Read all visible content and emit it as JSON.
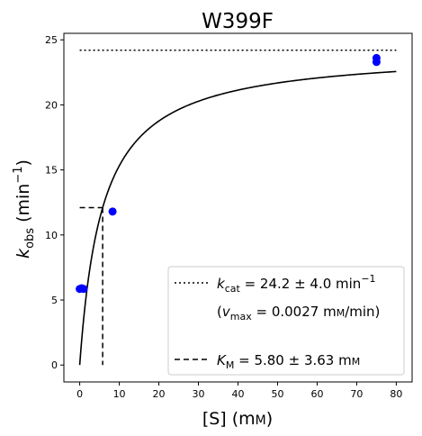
{
  "chart_data": {
    "type": "scatter",
    "title": "W399F",
    "xlabel": {
      "main": "[S] (m",
      "unit_sc": "M",
      "close": ")"
    },
    "ylabel": {
      "k": "k",
      "sub": "obs",
      "unit": " (min",
      "sup": "−1",
      "close": ")"
    },
    "xlim": [
      -4,
      84
    ],
    "ylim": [
      -1.3,
      25.5
    ],
    "xticks": [
      0,
      10,
      20,
      30,
      40,
      50,
      60,
      70,
      80
    ],
    "yticks": [
      0,
      5,
      10,
      15,
      20,
      25
    ],
    "grid": false,
    "legend_position": "lower-right",
    "points": {
      "color": "#0000ff",
      "x": [
        0.0,
        0.5,
        1.0,
        8.3,
        75.0,
        75.0
      ],
      "y": [
        5.85,
        5.9,
        5.85,
        11.8,
        23.3,
        23.6
      ]
    },
    "fit": {
      "kcat": 24.2,
      "km": 5.8,
      "x_range": [
        0,
        80
      ],
      "color": "#000000"
    },
    "vmax_line": {
      "y": 24.2,
      "x_range": [
        0,
        80
      ],
      "style": "dotted"
    },
    "km_line": {
      "x": 5.8,
      "y": 12.1,
      "style": "dashed"
    },
    "legend": {
      "kcat_line": {
        "k": "k",
        "sub": "cat",
        "value": " = 24.2 ± 4.0 min",
        "sup": "−1"
      },
      "vmax_line": {
        "open": "(",
        "v": "v",
        "sub": "max",
        "value": " = 0.0027 m",
        "unit_sc": "M",
        "close": "/min)"
      },
      "km_line": {
        "k": "K",
        "sub": "M",
        "value": " = 5.80 ± 3.63 m",
        "unit_sc": "M"
      }
    }
  }
}
